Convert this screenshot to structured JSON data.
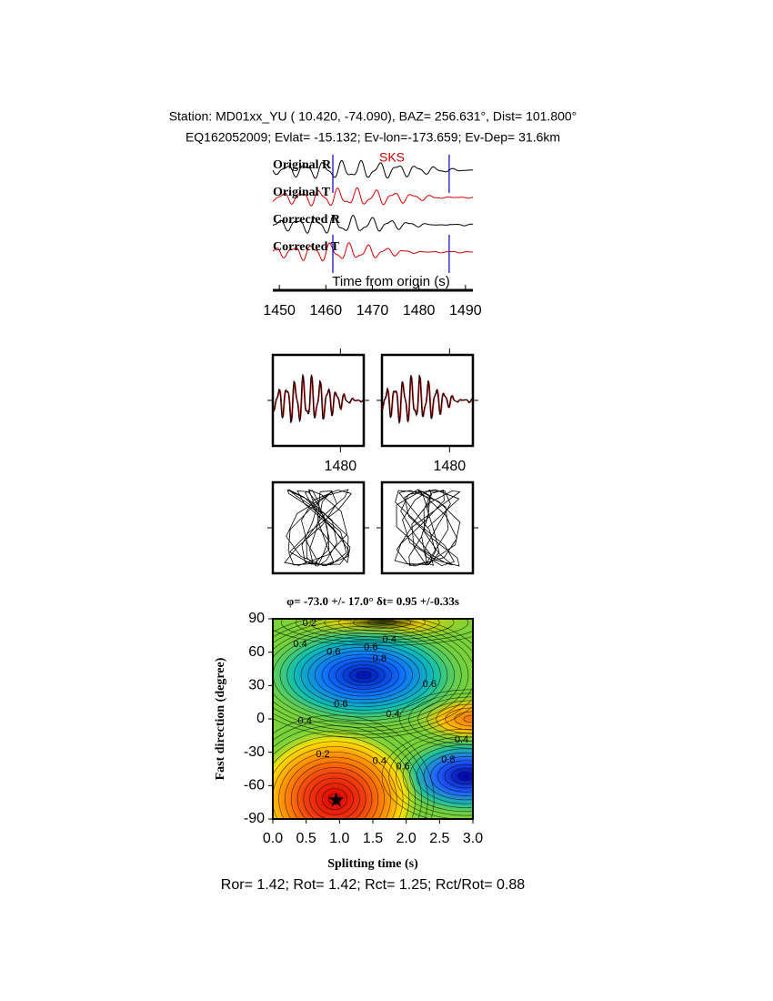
{
  "header": {
    "line1": "Station: MD01xx_YU (  10.420,  -74.090), BAZ=  256.631°, Dist=  101.800°",
    "line2": "EQ162052009; Evlat= -15.132; Ev-lon=-173.659; Ev-Dep= 31.6km"
  },
  "chart_data": [
    {
      "type": "waveform",
      "trace_labels": [
        "Original R",
        "Original T",
        "Corrected R",
        "Corrected T"
      ],
      "phase_label": "SKS",
      "x_label": "Time from origin (s)",
      "xlim": [
        1448.6,
        1491.6
      ],
      "xticks": [
        1450,
        1460,
        1470,
        1480,
        1490
      ],
      "markers": [
        1461.5,
        1486.5
      ]
    },
    {
      "type": "waveform-window",
      "xlim": [
        1465.5,
        1485
      ],
      "xticks": [
        1480
      ]
    },
    {
      "type": "waveform-window",
      "xlim": [
        1465.5,
        1485
      ],
      "xticks": [
        1480
      ]
    },
    {
      "type": "contour",
      "title": "φ= -73.0 +/- 17.0° δt= 0.95 +/-0.33s",
      "x_label": "Splitting time (s)",
      "y_label": "Fast direction (degree)",
      "xlim": [
        0,
        3
      ],
      "ylim": [
        -90,
        90
      ],
      "xticks": [
        {
          "value": 0,
          "label": "0.0"
        },
        0.5,
        {
          "value": 1,
          "label": "1.0"
        },
        1.5,
        {
          "value": 2,
          "label": "2.0"
        },
        2.5,
        {
          "value": 3,
          "label": "3.0"
        }
      ],
      "yticks": [
        -90,
        -60,
        -30,
        0,
        30,
        60,
        90
      ],
      "best": {
        "x": 0.95,
        "y": -73
      },
      "contour_labels": [
        {
          "x": 0.55,
          "y": 86,
          "value": 0.2
        },
        {
          "x": 0.41,
          "y": 67,
          "value": 0.4
        },
        {
          "x": 0.91,
          "y": 60,
          "value": 0.6
        },
        {
          "x": 1.47,
          "y": 64,
          "value": 0.6
        },
        {
          "x": 1.75,
          "y": 71,
          "value": 0.4
        },
        {
          "x": 1.6,
          "y": 54,
          "value": 0.8
        },
        {
          "x": 2.35,
          "y": 31,
          "value": 0.6
        },
        {
          "x": 1.02,
          "y": 13,
          "value": 0.6
        },
        {
          "x": 1.8,
          "y": 4,
          "value": 0.4
        },
        {
          "x": 0.48,
          "y": -2,
          "value": 0.4
        },
        {
          "x": 2.83,
          "y": -19,
          "value": 0.4
        },
        {
          "x": 2.63,
          "y": -37,
          "value": 0.8
        },
        {
          "x": 0.75,
          "y": -32,
          "value": 0.2
        },
        {
          "x": 1.95,
          "y": -43,
          "value": 0.6
        },
        {
          "x": 1.6,
          "y": -38,
          "value": 0.4
        }
      ]
    }
  ],
  "footer": "Ror= 1.42; Rot= 1.42; Rct= 1.25; Rct/Rot= 0.88"
}
